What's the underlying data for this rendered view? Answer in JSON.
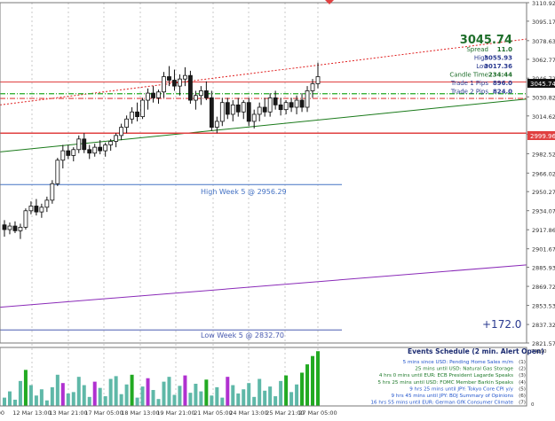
{
  "price_axis": {
    "labels": [
      "3110.92",
      "3095.17",
      "3078.63",
      "3062.77",
      "3046.72",
      "3030.82",
      "3014.62",
      "2998.96",
      "2982.52",
      "2966.02",
      "2950.27",
      "2934.07",
      "2917.86",
      "2901.67",
      "2885.93",
      "2869.72",
      "2853.53",
      "2837.32",
      "2821.57"
    ],
    "current_price_tag": "3045.74",
    "red_price_tag": "2999.96"
  },
  "volume_axis": {
    "top": "79290",
    "bottom": "0"
  },
  "time_axis": {
    "labels": [
      "5:00",
      "12 Mar 13:00",
      "13 Mar 21:00",
      "17 Mar 05:00",
      "18 Mar 13:00",
      "19 Mar 21:00",
      "21 Mar 05:00",
      "24 Mar 13:00",
      "25 Mar 21:00",
      "27 Mar 05:00"
    ]
  },
  "info_panel": {
    "price": "3045.74",
    "rows": [
      {
        "label": "Spread",
        "value": "11.0"
      },
      {
        "label": "High",
        "value": "3055.93"
      },
      {
        "label": "Low",
        "value": "3017.36"
      },
      {
        "label": "Candle Time",
        "value": "234:44"
      },
      {
        "label": "Trade 1 Pips",
        "value": "896.0"
      },
      {
        "label": "Trade 2 Pips",
        "value": "824.0"
      }
    ]
  },
  "level_labels": {
    "high_week": "High Week 5 @ 2956.29",
    "low_week": "Low Week 5 @ 2832.70"
  },
  "pips_total": "+172.0",
  "events": {
    "title": "Events Schedule (2 min. Alert Open)",
    "items": [
      {
        "text": "5 mins since USD: Pending Home Sales m/m",
        "num": "(1)"
      },
      {
        "text": "25 mins until USD: Natural Gas Storage",
        "num": "(2)"
      },
      {
        "text": "4 hrs 0 mins until EUR: ECB President Lagarde Speaks",
        "num": "(3)"
      },
      {
        "text": "5 hrs 25 mins until USD: FOMC Member Barkin Speaks",
        "num": "(4)"
      },
      {
        "text": "9 hrs 25 mins until JPY: Tokyo Core CPI y/y",
        "num": "(5)"
      },
      {
        "text": "9 hrs 45 mins until JPY: BOJ Summary of Opinions",
        "num": "(6)"
      },
      {
        "text": "16 hrs 55 mins until EUR: German GfK Consumer Climate",
        "num": "(7)"
      }
    ]
  },
  "colors": {
    "bull": "#2a2a2a",
    "bear": "#1a1a1a",
    "high_week": "#4472c4",
    "low_week": "#4a5bb0",
    "trend_green": "#1a7a1a",
    "trend_purple": "#8a2ab8",
    "trend_red_dotted": "#e02020",
    "level_red": "#e04040",
    "vol_teal": "#5fb8a8",
    "vol_green": "#22aa22",
    "vol_purple": "#b030d0"
  },
  "chart_data": {
    "type": "candlestick",
    "ylim": [
      2821.57,
      3110.92
    ],
    "levels": {
      "high_week": 2956.29,
      "low_week": 2832.7,
      "current": 3045.74,
      "red_level": 2999.96,
      "red_line_upper": 3043.5,
      "green_dashdot": 3033.5,
      "red_dashed": 3029.5
    },
    "trendlines": {
      "green": [
        2984.0,
        3029.0
      ],
      "purple": [
        2852.0,
        2888.0
      ],
      "red_dotted": [
        3024.0,
        3080.0
      ]
    },
    "candles": [
      [
        2922,
        2926,
        2912,
        2918
      ],
      [
        2918,
        2924,
        2914,
        2921
      ],
      [
        2921,
        2925,
        2915,
        2917
      ],
      [
        2917,
        2923,
        2910,
        2920
      ],
      [
        2920,
        2936,
        2918,
        2934
      ],
      [
        2934,
        2942,
        2931,
        2938
      ],
      [
        2938,
        2944,
        2930,
        2933
      ],
      [
        2933,
        2940,
        2928,
        2937
      ],
      [
        2937,
        2946,
        2933,
        2943
      ],
      [
        2943,
        2960,
        2940,
        2957
      ],
      [
        2957,
        2979,
        2955,
        2977
      ],
      [
        2977,
        2990,
        2970,
        2985
      ],
      [
        2985,
        2990,
        2978,
        2981
      ],
      [
        2981,
        2988,
        2976,
        2986
      ],
      [
        2986,
        2998,
        2983,
        2995
      ],
      [
        2995,
        3000,
        2983,
        2986
      ],
      [
        2986,
        2990,
        2978,
        2983
      ],
      [
        2983,
        2991,
        2980,
        2988
      ],
      [
        2988,
        2994,
        2982,
        2985
      ],
      [
        2985,
        2992,
        2980,
        2990
      ],
      [
        2990,
        2995,
        2985,
        2993
      ],
      [
        2993,
        3000,
        2988,
        2998
      ],
      [
        2998,
        3008,
        2994,
        3005
      ],
      [
        3005,
        3015,
        3000,
        3012
      ],
      [
        3012,
        3022,
        3008,
        3018
      ],
      [
        3018,
        3026,
        3010,
        3014
      ],
      [
        3014,
        3030,
        3012,
        3028
      ],
      [
        3028,
        3038,
        3020,
        3034
      ],
      [
        3034,
        3040,
        3026,
        3030
      ],
      [
        3030,
        3037,
        3025,
        3035
      ],
      [
        3035,
        3052,
        3030,
        3048
      ],
      [
        3048,
        3057,
        3040,
        3045
      ],
      [
        3045,
        3054,
        3036,
        3040
      ],
      [
        3040,
        3050,
        3032,
        3046
      ],
      [
        3046,
        3056,
        3040,
        3049
      ],
      [
        3049,
        3053,
        3025,
        3028
      ],
      [
        3028,
        3036,
        3020,
        3032
      ],
      [
        3032,
        3040,
        3024,
        3036
      ],
      [
        3036,
        3044,
        3028,
        3030
      ],
      [
        3030,
        3036,
        3002,
        3005
      ],
      [
        3005,
        3014,
        3000,
        3010
      ],
      [
        3010,
        3030,
        3006,
        3026
      ],
      [
        3026,
        3030,
        3012,
        3016
      ],
      [
        3016,
        3028,
        3010,
        3024
      ],
      [
        3024,
        3030,
        3014,
        3018
      ],
      [
        3018,
        3028,
        3012,
        3026
      ],
      [
        3026,
        3030,
        3006,
        3010
      ],
      [
        3010,
        3020,
        3004,
        3016
      ],
      [
        3016,
        3026,
        3010,
        3022
      ],
      [
        3022,
        3030,
        3014,
        3018
      ],
      [
        3018,
        3034,
        3014,
        3030
      ],
      [
        3030,
        3036,
        3020,
        3024
      ],
      [
        3024,
        3030,
        3015,
        3020
      ],
      [
        3020,
        3028,
        3016,
        3026
      ],
      [
        3026,
        3030,
        3018,
        3022
      ],
      [
        3022,
        3032,
        3016,
        3028
      ],
      [
        3028,
        3034,
        3018,
        3022
      ],
      [
        3022,
        3040,
        3018,
        3036
      ],
      [
        3036,
        3046,
        3030,
        3042
      ],
      [
        3042,
        3060,
        3038,
        3048
      ]
    ],
    "volume_max": 79290,
    "volumes": [
      [
        12000,
        "teal"
      ],
      [
        21000,
        "teal"
      ],
      [
        9000,
        "teal"
      ],
      [
        36000,
        "teal"
      ],
      [
        52000,
        "green"
      ],
      [
        30000,
        "teal"
      ],
      [
        15000,
        "teal"
      ],
      [
        24000,
        "teal"
      ],
      [
        8000,
        "teal"
      ],
      [
        27000,
        "teal"
      ],
      [
        45000,
        "teal"
      ],
      [
        33000,
        "purple"
      ],
      [
        18000,
        "teal"
      ],
      [
        20000,
        "teal"
      ],
      [
        42000,
        "teal"
      ],
      [
        30000,
        "teal"
      ],
      [
        13000,
        "teal"
      ],
      [
        35000,
        "purple"
      ],
      [
        26000,
        "teal"
      ],
      [
        14000,
        "teal"
      ],
      [
        39000,
        "teal"
      ],
      [
        43000,
        "teal"
      ],
      [
        17000,
        "teal"
      ],
      [
        31000,
        "teal"
      ],
      [
        45000,
        "green"
      ],
      [
        12000,
        "teal"
      ],
      [
        28000,
        "teal"
      ],
      [
        40000,
        "purple"
      ],
      [
        23000,
        "teal"
      ],
      [
        10000,
        "teal"
      ],
      [
        35000,
        "teal"
      ],
      [
        42000,
        "teal"
      ],
      [
        16000,
        "teal"
      ],
      [
        29000,
        "teal"
      ],
      [
        44000,
        "purple"
      ],
      [
        19000,
        "teal"
      ],
      [
        32000,
        "teal"
      ],
      [
        21000,
        "teal"
      ],
      [
        38000,
        "green"
      ],
      [
        15000,
        "teal"
      ],
      [
        27000,
        "teal"
      ],
      [
        12000,
        "teal"
      ],
      [
        42000,
        "purple"
      ],
      [
        30000,
        "teal"
      ],
      [
        18000,
        "teal"
      ],
      [
        24000,
        "teal"
      ],
      [
        33000,
        "teal"
      ],
      [
        13000,
        "teal"
      ],
      [
        39000,
        "teal"
      ],
      [
        22000,
        "teal"
      ],
      [
        28000,
        "teal"
      ],
      [
        14000,
        "teal"
      ],
      [
        36000,
        "teal"
      ],
      [
        44000,
        "green"
      ],
      [
        20000,
        "teal"
      ],
      [
        31000,
        "teal"
      ],
      [
        48000,
        "green"
      ],
      [
        60000,
        "green"
      ],
      [
        72000,
        "green"
      ],
      [
        79000,
        "green"
      ]
    ]
  }
}
